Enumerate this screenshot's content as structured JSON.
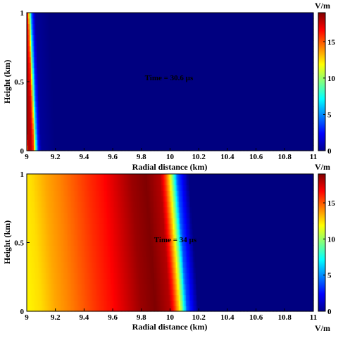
{
  "chart_data": [
    {
      "type": "heatmap",
      "title": "",
      "xlabel": "Radial distance (km)",
      "ylabel": "Height (km)",
      "xlim": [
        9,
        11
      ],
      "ylim": [
        0,
        1
      ],
      "xticks": [
        "9",
        "9.2",
        "9.4",
        "9.6",
        "9.8",
        "10",
        "10.2",
        "10.4",
        "10.6",
        "10.8",
        "11"
      ],
      "yticks": [
        "0",
        "0.5",
        "1"
      ],
      "annotation": "Time = 30.6 µs",
      "colorbar": {
        "label": "V/m",
        "range": [
          0,
          19
        ],
        "ticks": [
          "0",
          "5",
          "10",
          "15"
        ],
        "colormap": "jet"
      },
      "field_profile": {
        "x_km": [
          9.0,
          9.01,
          9.02,
          9.03,
          9.04,
          9.05,
          9.06,
          9.07,
          9.08,
          9.1,
          9.2,
          11.0
        ],
        "field_at_ground_vm": [
          12,
          18,
          18,
          18,
          17,
          15,
          10,
          6,
          3,
          0.5,
          0,
          0
        ],
        "front_x_at_top_km": 9.05,
        "front_x_at_ground_km": 9.09
      }
    },
    {
      "type": "heatmap",
      "title": "",
      "xlabel": "Radial distance (km)",
      "ylabel": "Height (km)",
      "xlim": [
        9,
        11
      ],
      "ylim": [
        0,
        1
      ],
      "xticks": [
        "9",
        "9.2",
        "9.4",
        "9.6",
        "9.8",
        "10",
        "10.2",
        "10.4",
        "10.6",
        "10.8",
        "11"
      ],
      "yticks": [
        "0",
        "0.5",
        "1"
      ],
      "annotation": "Time = 34 µs",
      "colorbar": {
        "label": "V/m",
        "range": [
          0,
          19
        ],
        "ticks": [
          "0",
          "5",
          "10",
          "15"
        ],
        "colormap": "jet"
      },
      "field_profile": {
        "x_km": [
          9.0,
          9.1,
          9.2,
          9.3,
          9.4,
          9.5,
          9.6,
          9.7,
          9.8,
          9.9,
          9.95,
          10.0,
          10.03,
          10.06,
          10.09,
          10.12,
          10.2,
          11.0
        ],
        "field_at_ground_vm": [
          12,
          12.5,
          13.5,
          14.2,
          15,
          15.8,
          16.5,
          17.5,
          18.5,
          19,
          18.5,
          18,
          16,
          13,
          9,
          4,
          0,
          0
        ],
        "front_x_at_top_km": 10.05,
        "front_x_at_ground_km": 10.12
      }
    }
  ]
}
